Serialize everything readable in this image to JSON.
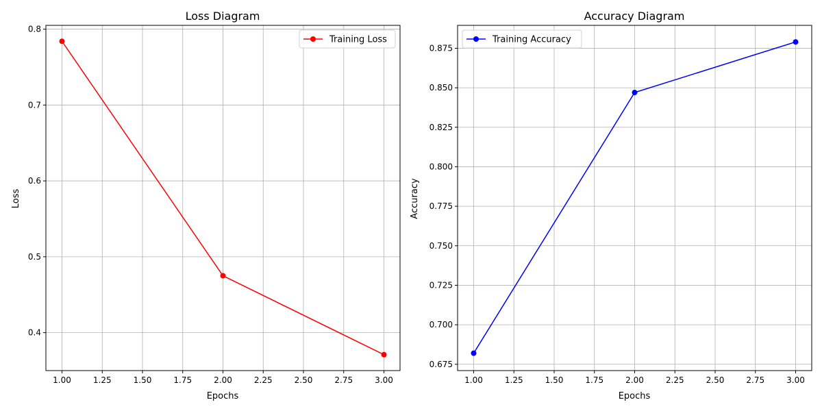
{
  "chart_data": [
    {
      "type": "line",
      "title": "Loss Diagram",
      "xlabel": "Epochs",
      "ylabel": "Loss",
      "x": [
        1.0,
        2.0,
        3.0
      ],
      "series": [
        {
          "name": "Training Loss",
          "values": [
            0.784,
            0.475,
            0.371
          ],
          "color": "#ff0000"
        }
      ],
      "xlim": [
        0.9,
        3.1
      ],
      "ylim": [
        0.35,
        0.805
      ],
      "xticks": [
        "1.00",
        "1.25",
        "1.50",
        "1.75",
        "2.00",
        "2.25",
        "2.50",
        "2.75",
        "3.00"
      ],
      "yticks": [
        "0.4",
        "0.5",
        "0.6",
        "0.7",
        "0.8"
      ],
      "grid": true,
      "legend": "upper-right"
    },
    {
      "type": "line",
      "title": "Accuracy Diagram",
      "xlabel": "Epochs",
      "ylabel": "Accuracy",
      "x": [
        1.0,
        2.0,
        3.0
      ],
      "series": [
        {
          "name": "Training Accuracy",
          "values": [
            0.682,
            0.847,
            0.879
          ],
          "color": "#0000ff"
        }
      ],
      "xlim": [
        0.9,
        3.1
      ],
      "ylim": [
        0.671,
        0.8895
      ],
      "xticks": [
        "1.00",
        "1.25",
        "1.50",
        "1.75",
        "2.00",
        "2.25",
        "2.50",
        "2.75",
        "3.00"
      ],
      "yticks": [
        "0.675",
        "0.700",
        "0.725",
        "0.750",
        "0.775",
        "0.800",
        "0.825",
        "0.850",
        "0.875"
      ],
      "grid": true,
      "legend": "upper-left"
    }
  ]
}
